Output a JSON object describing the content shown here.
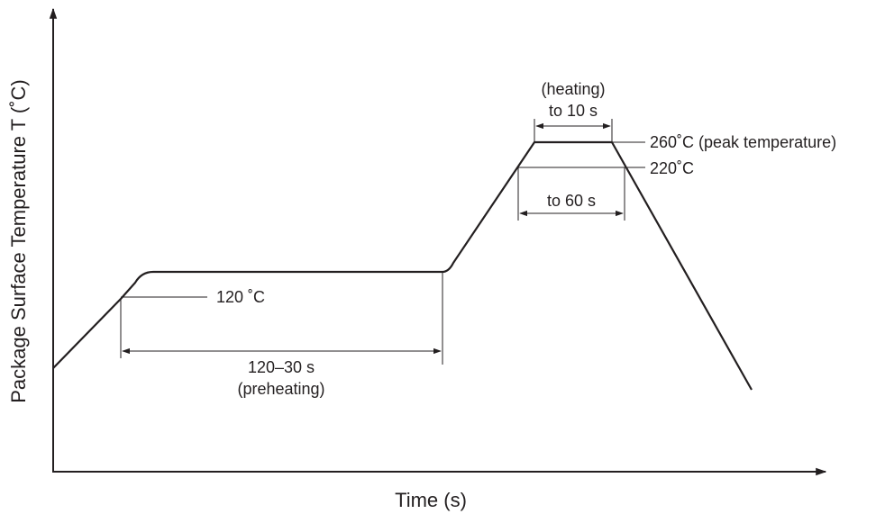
{
  "axes": {
    "y_label": "Package Surface Temperature T (˚C)",
    "x_label": "Time (s)"
  },
  "labels": {
    "preheat_temp": "120 ˚C",
    "preheat_duration": "120–30 s",
    "preheat_note": "(preheating)",
    "heating_note": "(heating)",
    "heating_duration": "to 10 s",
    "peak_temp": "260˚C (peak temperature)",
    "reflow_temp": "220˚C",
    "reflow_duration": "to 60 s"
  },
  "colors": {
    "line": "#231f20",
    "background": "#ffffff"
  }
}
